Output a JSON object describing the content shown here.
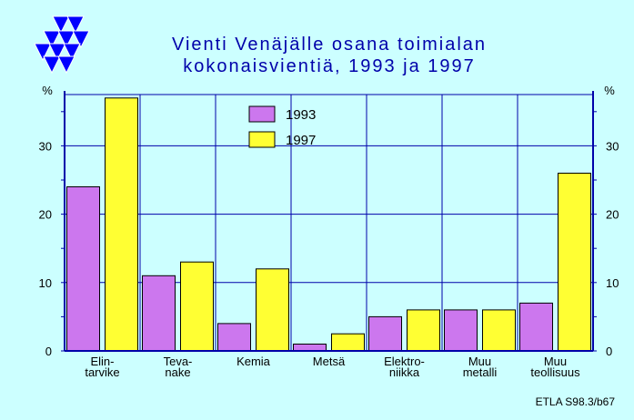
{
  "colors": {
    "background": "#ccffff",
    "plot_background": "#ccffff",
    "grid": "#0000aa",
    "axis": "#0000aa",
    "title": "#0000aa",
    "logo": "#0000ff"
  },
  "logo": {
    "icon": "triangle-logo-icon"
  },
  "source_note": "ETLA S98.3/b67",
  "chart_data": {
    "type": "bar",
    "title_lines": [
      "Vienti Venäjälle osana toimialan",
      "kokonaisvientiä, 1993 ja 1997"
    ],
    "y_unit_left": "%",
    "y_unit_right": "%",
    "ylim": [
      0,
      37.5
    ],
    "yticks": [
      0,
      10,
      20,
      30
    ],
    "ytick_labels": [
      "0",
      "10",
      "20",
      "30"
    ],
    "grid": true,
    "legend_position": "top-center",
    "categories": [
      [
        "Elin-",
        "tarvike"
      ],
      [
        "Teva-",
        "nake"
      ],
      [
        "Kemia"
      ],
      [
        "Metsä"
      ],
      [
        "Elektro-",
        "niikka"
      ],
      [
        "Muu",
        "metalli"
      ],
      [
        "Muu",
        "teollisuus"
      ]
    ],
    "series": [
      {
        "name": "1993",
        "color": "#cc77ee",
        "values": [
          24,
          11,
          4,
          1,
          5,
          6,
          7
        ]
      },
      {
        "name": "1997",
        "color": "#ffff33",
        "values": [
          37,
          13,
          12,
          2.5,
          6,
          6,
          26
        ]
      }
    ]
  }
}
